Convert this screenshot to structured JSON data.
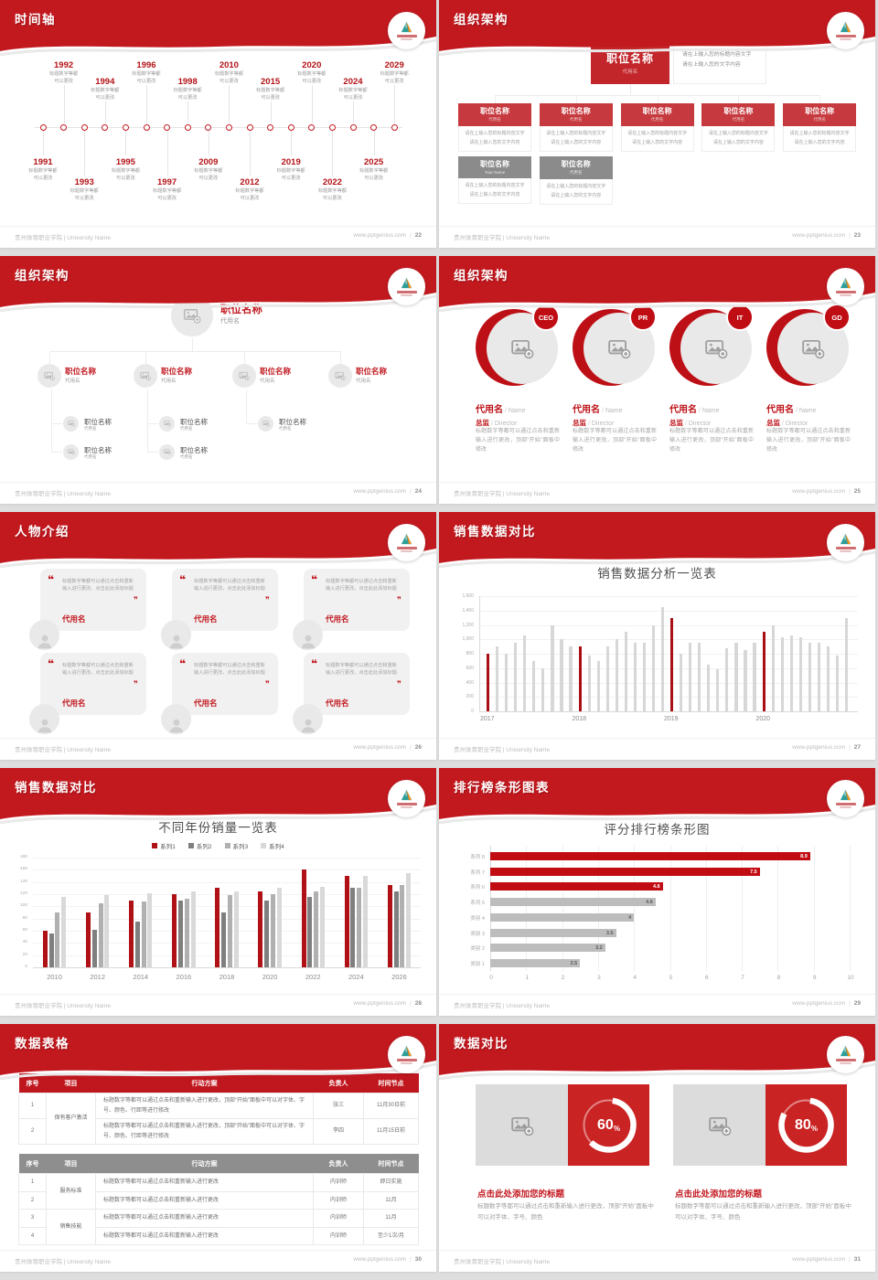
{
  "colors": {
    "header_red": "#c2191f",
    "accent_red": "#c1181f",
    "chart_bar_red": "#a90f15",
    "chart_bar_gray": "#d7d7d7",
    "donut_box_red": "#ca2323",
    "table_header_red": "#c0171e",
    "table_header_gray": "#8e8e8e"
  },
  "footer": {
    "org": "贵州体育职业学院 | University Name",
    "site": "www.pptgenius.com",
    "sep": "|"
  },
  "slides": {
    "timeline": {
      "title": "时间轴",
      "page": "22",
      "caption_line1": "标题数字等都",
      "caption_line2": "可以更改",
      "years": [
        "1991",
        "1992",
        "1993",
        "1994",
        "1995",
        "1996",
        "1997",
        "1998",
        "2009",
        "2010",
        "2012",
        "2015",
        "2019",
        "2020",
        "2022",
        "2024",
        "2025",
        "2029"
      ]
    },
    "org_boxes": {
      "title": "组织架构",
      "page": "23",
      "root": {
        "title": "职位名称",
        "sub": "代用名"
      },
      "root_note": [
        "请在上输入您的标题内容文字",
        "请在上输入您的文字内容"
      ],
      "card_note": [
        "请在上输入您的标题内容文字",
        "请在上输入您的文字内容"
      ],
      "cards": [
        {
          "title": "职位名称",
          "sub": "代用名",
          "style": "red"
        },
        {
          "title": "职位名称",
          "sub": "代用名",
          "style": "red"
        },
        {
          "title": "职位名称",
          "sub": "代用名",
          "style": "red"
        },
        {
          "title": "职位名称",
          "sub": "代用名",
          "style": "red"
        },
        {
          "title": "职位名称",
          "sub": "代用名",
          "style": "red"
        },
        {
          "title": "职位名称",
          "sub": "Your Name",
          "style": "gray"
        },
        {
          "title": "职位名称",
          "sub": "代用名",
          "style": "gray"
        }
      ]
    },
    "org_tree": {
      "title": "组织架构",
      "page": "24",
      "root": {
        "title": "职位名称",
        "sub": "代用名"
      },
      "children": [
        {
          "title": "职位名称",
          "sub": "代用名",
          "subs": 2
        },
        {
          "title": "职位名称",
          "sub": "代用名",
          "subs": 2
        },
        {
          "title": "职位名称",
          "sub": "代用名",
          "subs": 1
        },
        {
          "title": "职位名称",
          "sub": "代用名",
          "subs": 0
        }
      ],
      "leaf": {
        "title": "职位名称",
        "sub": "代用名"
      }
    },
    "org_circles": {
      "title": "组织架构",
      "page": "25",
      "members": [
        {
          "badge": "CEO",
          "name": "代用名",
          "name_en": "Name",
          "role": "总监",
          "role_en": "Director",
          "body": "标题数字等都可以通过点击和重新输入进行更改，顶部“开始”面板中修改"
        },
        {
          "badge": "PR",
          "name": "代用名",
          "name_en": "Name",
          "role": "总监",
          "role_en": "Director",
          "body": "标题数字等都可以通过点击和重新输入进行更改，顶部“开始”面板中修改"
        },
        {
          "badge": "IT",
          "name": "代用名",
          "name_en": "Name",
          "role": "总监",
          "role_en": "Director",
          "body": "标题数字等都可以通过点击和重新输入进行更改，顶部“开始”面板中修改"
        },
        {
          "badge": "GD",
          "name": "代用名",
          "name_en": "Name",
          "role": "总监",
          "role_en": "Director",
          "body": "标题数字等都可以通过点击和重新输入进行更改，顶部“开始”面板中修改"
        }
      ]
    },
    "people": {
      "title": "人物介绍",
      "page": "26",
      "quote": "标题数字等都可以通过点击和重新输入进行更改，点击此处添加标题",
      "name": "代用名",
      "count": 6
    },
    "sales1": {
      "title": "销售数据对比",
      "page": "27"
    },
    "sales2": {
      "title": "销售数据对比",
      "page": "28"
    },
    "ranking": {
      "title": "排行榜条形图表",
      "page": "29"
    },
    "tables": {
      "title": "数据表格",
      "page": "30",
      "headers": [
        "序号",
        "项目",
        "行动方案",
        "负责人",
        "时间节点"
      ],
      "table1": {
        "groups": [
          {
            "label": "保有客户激活",
            "span": 2
          }
        ],
        "rows": [
          {
            "no": "1",
            "plan": "标题数字等都可以通过点击和重新输入进行更改，顶部“开始”面板中可以对字体、字号、颜色、行距等进行修改",
            "owner": "张三",
            "due": "11月30日前"
          },
          {
            "no": "2",
            "plan": "标题数字等都可以通过点击和重新输入进行更改，顶部“开始”面板中可以对字体、字号、颜色、行距等进行修改",
            "owner": "李四",
            "due": "11月15日前"
          }
        ]
      },
      "table2": {
        "groups": [
          {
            "label": "服务标准",
            "span": 2
          },
          {
            "label": "销售技能",
            "span": 2
          }
        ],
        "rows": [
          {
            "no": "1",
            "plan": "标题数字等都可以通过点击和重新输入进行更改",
            "owner": "内训师",
            "due": "即日实施"
          },
          {
            "no": "2",
            "plan": "标题数字等都可以通过点击和重新输入进行更改",
            "owner": "内训师",
            "due": "11月"
          },
          {
            "no": "3",
            "plan": "标题数字等都可以通过点击和重新输入进行更改",
            "owner": "内训师",
            "due": "11月"
          },
          {
            "no": "4",
            "plan": "标题数字等都可以通过点击和重新输入进行更改",
            "owner": "内训师",
            "due": "至少1次/月"
          }
        ]
      }
    },
    "compare": {
      "title": "数据对比",
      "page": "31",
      "items": [
        {
          "pct": 60,
          "heading": "点击此处添加您的标题",
          "body": "标题数字等都可以通过点击和重新输入进行更改，顶部“开始”面板中可以对字体、字号、颜色"
        },
        {
          "pct": 80,
          "heading": "点击此处添加您的标题",
          "body": "标题数字等都可以通过点击和重新输入进行更改，顶部“开始”面板中可以对字体、字号、颜色"
        }
      ]
    }
  },
  "chart_data": [
    {
      "type": "bar",
      "title": "销售数据分析一览表",
      "ylabel": "",
      "xlabel": "",
      "ylim": [
        0,
        1600
      ],
      "ytick_step": 200,
      "values": [
        800,
        900,
        800,
        950,
        1050,
        700,
        600,
        1200,
        1000,
        900,
        900,
        780,
        700,
        900,
        1000,
        1100,
        950,
        950,
        1200,
        1450,
        1300,
        800,
        950,
        950,
        650,
        580,
        880,
        950,
        850,
        950,
        1100,
        1200,
        1030,
        1050,
        1030,
        950,
        950,
        900,
        780,
        1300
      ],
      "highlight_indices": [
        0,
        10,
        20,
        30
      ],
      "x_tick_indices": [
        0,
        10,
        20,
        30
      ],
      "x_tick_labels": [
        "2017",
        "2018",
        "2019",
        "2020"
      ],
      "bar_color": "#a90f15",
      "bar_color_default": "#d7d7d7"
    },
    {
      "type": "bar",
      "title": "不同年份销量一览表",
      "categories": [
        "2010",
        "2012",
        "2014",
        "2016",
        "2018",
        "2020",
        "2022",
        "2024",
        "2026"
      ],
      "ylim": [
        0,
        180
      ],
      "ytick_step": 20,
      "legend_position": "top",
      "series": [
        {
          "name": "系列1",
          "color": "#b01116",
          "values": [
            60,
            90,
            110,
            120,
            130,
            125,
            160,
            150,
            135
          ]
        },
        {
          "name": "系列2",
          "color": "#7f7f7f",
          "values": [
            55,
            62,
            75,
            110,
            90,
            110,
            115,
            130,
            125
          ]
        },
        {
          "name": "系列3",
          "color": "#b0b0b0",
          "values": [
            90,
            105,
            108,
            112,
            118,
            120,
            125,
            130,
            135
          ]
        },
        {
          "name": "系列4",
          "color": "#d9d9d9",
          "values": [
            115,
            118,
            122,
            124,
            125,
            130,
            132,
            150,
            155
          ]
        }
      ]
    },
    {
      "type": "bar",
      "orientation": "horizontal",
      "title": "评分排行榜条形图",
      "categories": [
        "系列 8",
        "系列 7",
        "系列 6",
        "系列 5",
        "类别 4",
        "类别 3",
        "类别 2",
        "类别 1"
      ],
      "values": [
        8.9,
        7.5,
        4.8,
        4.6,
        4,
        3.5,
        3.2,
        2.5
      ],
      "value_labels": [
        "8.9",
        "7.5",
        "4.8",
        "4.6",
        "4",
        "3.5",
        "3.2",
        "2.5"
      ],
      "red_count": 3,
      "color_red": "#c00c12",
      "color_gray": "#bdbdbd",
      "xlim": [
        0,
        10
      ]
    },
    {
      "type": "donut",
      "items": [
        {
          "label": "60%",
          "value": 60
        },
        {
          "label": "80%",
          "value": 80
        }
      ]
    }
  ]
}
